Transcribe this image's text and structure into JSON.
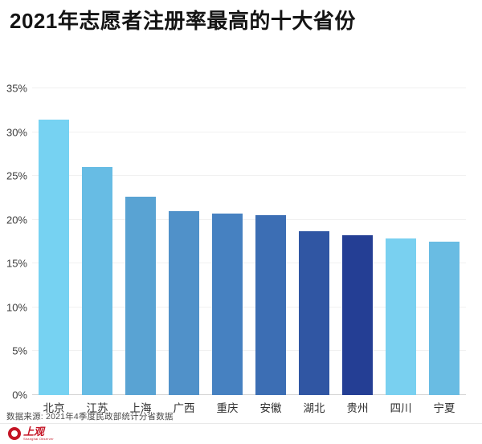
{
  "title": "2021年志愿者注册率最高的十大省份",
  "source_note": "数据来源: 2021年4季度民政部统计分省数据",
  "logo": {
    "name": "上观",
    "subtext": "Shanghai Observer",
    "color": "#c41425"
  },
  "chart_data": {
    "type": "bar",
    "title": "2021年志愿者注册率最高的十大省份",
    "categories": [
      "北京",
      "江苏",
      "上海",
      "广西",
      "重庆",
      "安徽",
      "湖北",
      "贵州",
      "四川",
      "宁夏"
    ],
    "values": [
      31.4,
      26.0,
      22.6,
      21.0,
      20.7,
      20.5,
      18.7,
      18.2,
      17.9,
      17.5
    ],
    "unit": "%",
    "bar_colors": [
      "#76d2f2",
      "#67bce4",
      "#59a3d3",
      "#5091c9",
      "#4681c1",
      "#3c6eb4",
      "#3056a3",
      "#243e94",
      "#79d0f0",
      "#69bce3"
    ],
    "xlabel": "",
    "ylabel": "",
    "ylim": [
      0,
      35
    ],
    "ytick_step": 5,
    "ytick_labels": [
      "0%",
      "5%",
      "10%",
      "15%",
      "20%",
      "25%",
      "30%",
      "35%"
    ],
    "grid": true,
    "legend": false
  }
}
